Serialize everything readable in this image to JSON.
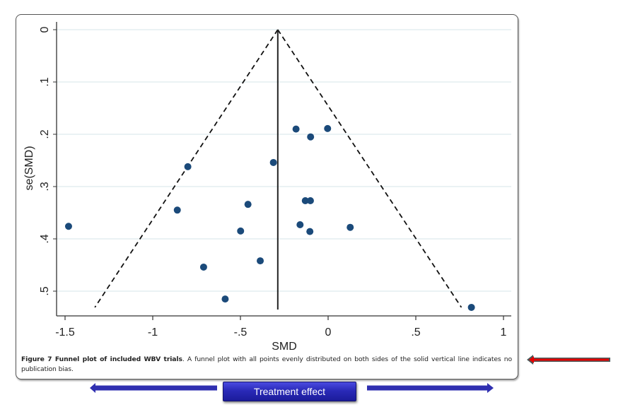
{
  "chart_data": {
    "type": "scatter",
    "subtype": "funnel_plot",
    "title": "",
    "xlabel": "SMD",
    "ylabel": "se(SMD)",
    "xlim": [
      -1.55,
      1.04
    ],
    "ylim": [
      0,
      0.547
    ],
    "y_inverted": true,
    "x_ticks": [
      -1.5,
      -1,
      -0.5,
      0,
      0.5,
      1
    ],
    "x_tick_labels": [
      "-1.5",
      "-1",
      "-.5",
      "0",
      ".5",
      "1"
    ],
    "y_ticks": [
      0,
      0.1,
      0.2,
      0.3,
      0.4,
      0.5
    ],
    "y_tick_labels": [
      "0",
      ".1",
      ".2",
      ".3",
      ".4",
      ".5"
    ],
    "grid": "horizontal",
    "pooled_effect_line": {
      "x": -0.287,
      "style": "solid",
      "from_se": 0,
      "to_se": 0.531
    },
    "funnel_limits": {
      "style": "dashed",
      "apex": {
        "x": -0.287,
        "se": 0
      },
      "left_end": {
        "x": -1.33,
        "se": 0.531
      },
      "right_end": {
        "x": 0.76,
        "se": 0.531
      }
    },
    "points": [
      {
        "x": -1.48,
        "se": 0.376
      },
      {
        "x": -0.8,
        "se": 0.262
      },
      {
        "x": -0.86,
        "se": 0.345
      },
      {
        "x": -0.457,
        "se": 0.334
      },
      {
        "x": -0.499,
        "se": 0.385
      },
      {
        "x": -0.71,
        "se": 0.454
      },
      {
        "x": -0.387,
        "se": 0.442
      },
      {
        "x": -0.587,
        "se": 0.515
      },
      {
        "x": -0.312,
        "se": 0.254
      },
      {
        "x": -0.183,
        "se": 0.19
      },
      {
        "x": -0.003,
        "se": 0.189
      },
      {
        "x": -0.1,
        "se": 0.205
      },
      {
        "x": -0.13,
        "se": 0.327
      },
      {
        "x": -0.101,
        "se": 0.327
      },
      {
        "x": -0.16,
        "se": 0.373
      },
      {
        "x": -0.104,
        "se": 0.386
      },
      {
        "x": 0.126,
        "se": 0.378
      },
      {
        "x": 0.817,
        "se": 0.531
      }
    ],
    "marker_color": "#1b4a7a",
    "legend": null
  },
  "caption": {
    "label": "Figure 7 Funnel plot of included WBV trials",
    "text": ". A funnel plot with all points evenly distributed on both sides of the solid vertical line indicates no publication bias."
  },
  "annotations": {
    "treatment_effect_label": "Treatment effect",
    "pointer_arrow_color": "#e00000",
    "direction_arrow_color": "#2f2fb0"
  }
}
